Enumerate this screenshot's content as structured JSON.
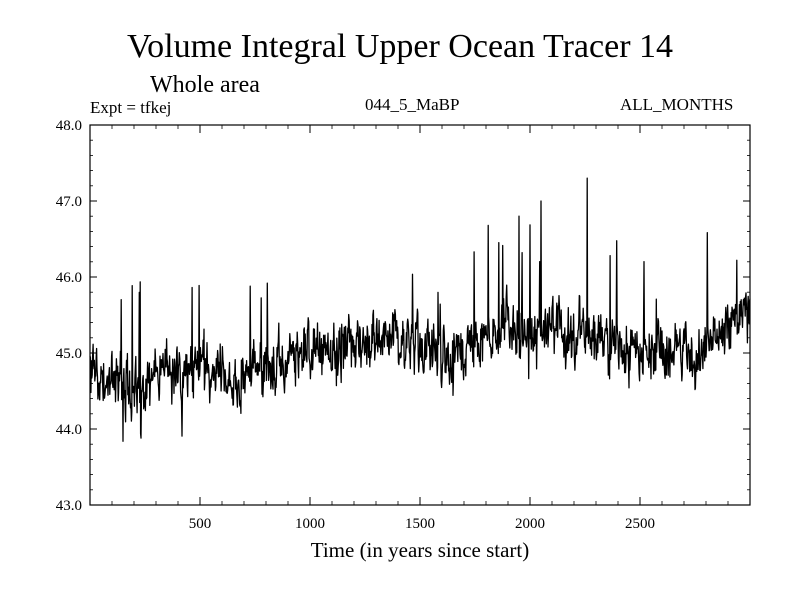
{
  "header": {
    "title": "Volume Integral Upper Ocean Tracer 14",
    "subtitle": "Whole area",
    "expt": "Expt = tfkej",
    "run_label": "044_5_MaBP",
    "months_label": "ALL_MONTHS"
  },
  "chart_data": {
    "type": "line",
    "title": "Volume Integral Upper Ocean Tracer 14",
    "subtitle": "Whole area",
    "xlabel": "Time (in years since start)",
    "ylabel": "",
    "xlim": [
      0,
      3000
    ],
    "ylim": [
      43.0,
      48.0
    ],
    "xticks": [
      500,
      1000,
      1500,
      2000,
      2500
    ],
    "xtick_labels": [
      "500",
      "1000",
      "1500",
      "2000",
      "2500"
    ],
    "yticks": [
      43.0,
      44.0,
      45.0,
      46.0,
      47.0,
      48.0
    ],
    "ytick_labels": [
      "43.0",
      "44.0",
      "45.0",
      "46.0",
      "47.0",
      "48.0"
    ],
    "grid": false,
    "legend": "none",
    "line_color": "#000000",
    "series": [
      {
        "x": [
          0,
          50,
          100,
          150,
          200,
          250,
          300,
          350,
          400,
          450,
          500,
          550,
          600,
          650,
          700,
          750,
          800,
          850,
          900,
          950,
          1000,
          1050,
          1100,
          1150,
          1200,
          1250,
          1300,
          1350,
          1400,
          1450,
          1500,
          1550,
          1600,
          1650,
          1700,
          1750,
          1800,
          1850,
          1900,
          1950,
          2000,
          2050,
          2100,
          2150,
          2200,
          2250,
          2300,
          2350,
          2400,
          2450,
          2500,
          2550,
          2600,
          2650,
          2700,
          2750,
          2800,
          2850,
          2900,
          2950,
          3000
        ],
        "y": [
          44.8,
          44.7,
          44.7,
          44.6,
          44.5,
          44.6,
          44.7,
          44.8,
          44.7,
          44.7,
          44.8,
          44.7,
          44.8,
          44.6,
          44.7,
          44.8,
          44.8,
          44.9,
          45.0,
          45.0,
          45.1,
          45.0,
          45.0,
          45.1,
          45.2,
          45.1,
          45.2,
          45.2,
          45.1,
          45.1,
          45.0,
          45.1,
          45.0,
          45.0,
          45.0,
          45.1,
          45.2,
          45.3,
          45.4,
          45.3,
          45.3,
          45.3,
          45.4,
          45.3,
          45.2,
          45.4,
          45.2,
          45.1,
          45.0,
          45.1,
          45.0,
          45.1,
          45.1,
          45.0,
          45.1,
          44.9,
          45.0,
          45.2,
          45.4,
          45.5,
          45.4
        ]
      }
    ],
    "annotations": [
      {
        "x": 2260,
        "y": 47.3
      },
      {
        "x": 2050,
        "y": 47.0
      },
      {
        "x": 1950,
        "y": 46.8
      }
    ]
  }
}
